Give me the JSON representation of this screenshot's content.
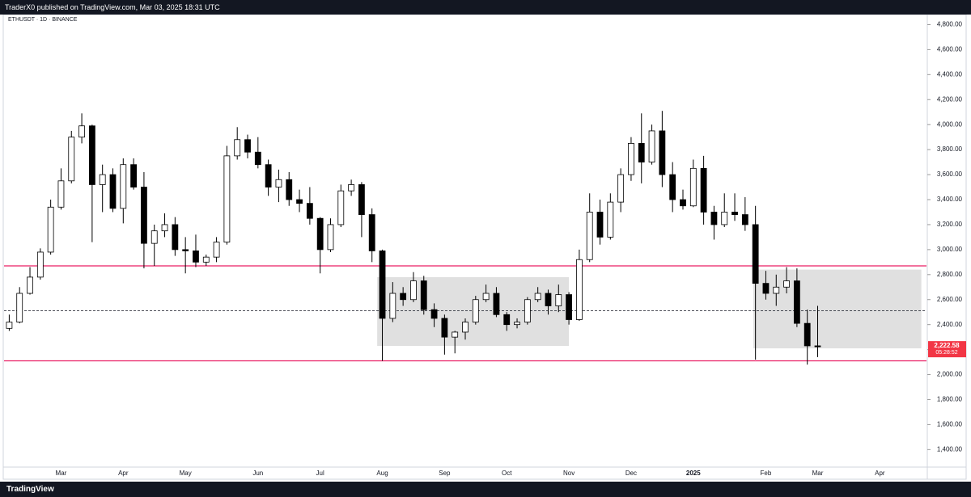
{
  "header": {
    "title": "TraderX0 published on TradingView.com, Mar 03, 2025 18:31 UTC"
  },
  "footer": {
    "brand": "TradingView"
  },
  "chart_data": {
    "type": "candlestick",
    "symbol": "ETHUSDT · 1D · BINANCE",
    "up_color": "#ffffff",
    "down_color": "#000000",
    "categories": [
      null,
      null,
      null,
      null,
      null,
      "Mar",
      null,
      null,
      null,
      null,
      null,
      "Apr",
      null,
      null,
      null,
      null,
      null,
      "May",
      null,
      null,
      null,
      null,
      null,
      null,
      "Jun",
      null,
      null,
      null,
      null,
      null,
      "Jul",
      null,
      null,
      null,
      null,
      null,
      "Aug",
      null,
      null,
      null,
      null,
      null,
      "Sep",
      null,
      null,
      null,
      null,
      null,
      "Oct",
      null,
      null,
      null,
      null,
      null,
      "Nov",
      null,
      null,
      null,
      null,
      null,
      "Dec",
      null,
      null,
      null,
      null,
      null,
      "2025",
      null,
      null,
      null,
      null,
      null,
      null,
      "Feb",
      null,
      null,
      null,
      null,
      "Mar",
      null,
      null,
      null,
      null,
      null,
      "Apr",
      null,
      null,
      null,
      null
    ],
    "ohlc": [
      [
        2370,
        2480,
        2350,
        2420
      ],
      [
        2420,
        2700,
        2410,
        2650
      ],
      [
        2650,
        2860,
        2640,
        2780
      ],
      [
        2780,
        3010,
        2760,
        2980
      ],
      [
        2980,
        3400,
        2960,
        3340
      ],
      [
        3340,
        3650,
        3320,
        3550
      ],
      [
        3550,
        3950,
        3530,
        3900
      ],
      [
        3900,
        4090,
        3850,
        3990
      ],
      [
        3990,
        4000,
        3060,
        3520
      ],
      [
        3520,
        3680,
        3300,
        3600
      ],
      [
        3600,
        3650,
        3300,
        3330
      ],
      [
        3330,
        3730,
        3210,
        3680
      ],
      [
        3680,
        3730,
        3480,
        3500
      ],
      [
        3500,
        3620,
        2850,
        3050
      ],
      [
        3050,
        3200,
        2870,
        3150
      ],
      [
        3150,
        3290,
        3100,
        3200
      ],
      [
        3200,
        3260,
        2950,
        3000
      ],
      [
        3000,
        3100,
        2810,
        2990
      ],
      [
        2990,
        3120,
        2860,
        2900
      ],
      [
        2900,
        2960,
        2870,
        2940
      ],
      [
        2940,
        3100,
        2900,
        3060
      ],
      [
        3060,
        3830,
        3040,
        3750
      ],
      [
        3750,
        3980,
        3720,
        3880
      ],
      [
        3880,
        3920,
        3730,
        3780
      ],
      [
        3780,
        3900,
        3650,
        3680
      ],
      [
        3680,
        3720,
        3430,
        3500
      ],
      [
        3500,
        3640,
        3380,
        3560
      ],
      [
        3560,
        3620,
        3350,
        3400
      ],
      [
        3400,
        3480,
        3300,
        3370
      ],
      [
        3370,
        3500,
        3200,
        3250
      ],
      [
        3250,
        3260,
        2810,
        3000
      ],
      [
        3000,
        3250,
        2980,
        3200
      ],
      [
        3200,
        3520,
        3180,
        3470
      ],
      [
        3470,
        3560,
        3430,
        3520
      ],
      [
        3520,
        3540,
        3100,
        3280
      ],
      [
        3280,
        3330,
        2900,
        2990
      ],
      [
        2990,
        3000,
        2110,
        2450
      ],
      [
        2450,
        2740,
        2420,
        2650
      ],
      [
        2650,
        2700,
        2550,
        2600
      ],
      [
        2600,
        2820,
        2580,
        2750
      ],
      [
        2750,
        2790,
        2480,
        2520
      ],
      [
        2520,
        2570,
        2380,
        2450
      ],
      [
        2450,
        2480,
        2160,
        2300
      ],
      [
        2300,
        2350,
        2170,
        2340
      ],
      [
        2340,
        2450,
        2280,
        2420
      ],
      [
        2420,
        2630,
        2400,
        2600
      ],
      [
        2600,
        2720,
        2580,
        2650
      ],
      [
        2650,
        2700,
        2460,
        2480
      ],
      [
        2480,
        2500,
        2350,
        2400
      ],
      [
        2400,
        2450,
        2370,
        2420
      ],
      [
        2420,
        2620,
        2400,
        2600
      ],
      [
        2600,
        2700,
        2580,
        2650
      ],
      [
        2650,
        2680,
        2480,
        2550
      ],
      [
        2550,
        2720,
        2500,
        2640
      ],
      [
        2640,
        2660,
        2400,
        2440
      ],
      [
        2440,
        3000,
        2430,
        2920
      ],
      [
        2920,
        3450,
        2900,
        3300
      ],
      [
        3300,
        3400,
        3040,
        3100
      ],
      [
        3100,
        3450,
        3080,
        3380
      ],
      [
        3380,
        3650,
        3300,
        3600
      ],
      [
        3600,
        3900,
        3550,
        3850
      ],
      [
        3850,
        4090,
        3530,
        3700
      ],
      [
        3700,
        4000,
        3680,
        3950
      ],
      [
        3950,
        4110,
        3500,
        3600
      ],
      [
        3600,
        3700,
        3300,
        3400
      ],
      [
        3400,
        3480,
        3320,
        3350
      ],
      [
        3350,
        3720,
        3340,
        3650
      ],
      [
        3650,
        3750,
        3200,
        3300
      ],
      [
        3300,
        3350,
        3080,
        3200
      ],
      [
        3200,
        3450,
        3180,
        3300
      ],
      [
        3300,
        3450,
        3230,
        3280
      ],
      [
        3280,
        3420,
        3150,
        3200
      ],
      [
        3200,
        3350,
        2120,
        2730
      ],
      [
        2730,
        2830,
        2600,
        2650
      ],
      [
        2650,
        2800,
        2550,
        2700
      ],
      [
        2700,
        2860,
        2650,
        2750
      ],
      [
        2750,
        2850,
        2380,
        2410
      ],
      [
        2410,
        2520,
        2080,
        2230
      ],
      [
        2230,
        2550,
        2140,
        2222.58
      ],
      null,
      null,
      null,
      null,
      null,
      null,
      null,
      null,
      null,
      null
    ],
    "last_price": {
      "value": 2222.58,
      "label": "2,222.58",
      "timer": "05:28:52",
      "color": "#f23645"
    },
    "levels": [
      {
        "value": 2870,
        "color": "#e91e63",
        "style": "solid"
      },
      {
        "value": 2110,
        "color": "#e91e63",
        "style": "solid"
      },
      {
        "value": 2510,
        "color": "#131722",
        "style": "dashed"
      }
    ],
    "zones": [
      {
        "top": 2780,
        "bottom": 2230,
        "color": "#e0e0e0"
      },
      {
        "top": 2840,
        "bottom": 2210,
        "color": "#e0e0e0"
      }
    ],
    "ylim": [
      1260,
      4900
    ],
    "yticks": [
      {
        "value": 1400,
        "label": "1,400.00"
      },
      {
        "value": 1600,
        "label": "1,600.00"
      },
      {
        "value": 1800,
        "label": "1,800.00"
      },
      {
        "value": 2000,
        "label": "2,000.00"
      },
      {
        "value": 2200,
        "label": "2,200.00"
      },
      {
        "value": 2400,
        "label": "2,400.00"
      },
      {
        "value": 2600,
        "label": "2,600.00"
      },
      {
        "value": 2800,
        "label": "2,800.00"
      },
      {
        "value": 3000,
        "label": "3,000.00"
      },
      {
        "value": 3200,
        "label": "3,200.00"
      },
      {
        "value": 3400,
        "label": "3,400.00"
      },
      {
        "value": 3600,
        "label": "3,600.00"
      },
      {
        "value": 3800,
        "label": "3,800.00"
      },
      {
        "value": 4000,
        "label": "4,000.00"
      },
      {
        "value": 4200,
        "label": "4,200.00"
      },
      {
        "value": 4400,
        "label": "4,400.00"
      },
      {
        "value": 4600,
        "label": "4,600.00"
      },
      {
        "value": 4800,
        "label": "4,800.00"
      }
    ],
    "grid": false
  }
}
